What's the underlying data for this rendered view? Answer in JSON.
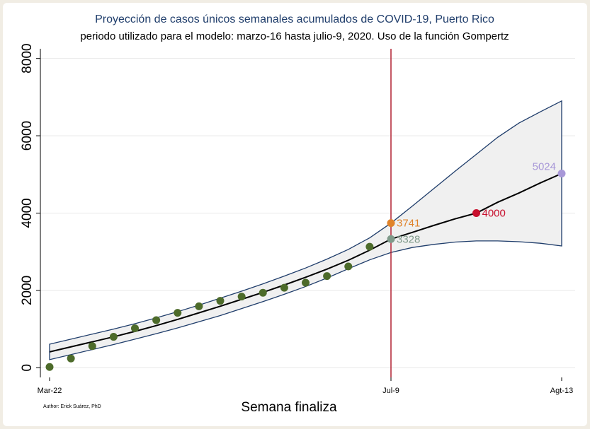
{
  "chart_data": {
    "type": "line",
    "title": "Proyección de casos únicos semanales acumulados de COVID-19, Puerto Rico",
    "subtitle": "periodo utilizado para el modelo: marzo-16 hasta julio-9, 2020. Uso de la función Gompertz",
    "xlabel": "Semana finaliza",
    "ylabel": "",
    "author": "Author: Erick Suárez, PhD",
    "x_tick_labels": [
      "Mar-22",
      "Jul-9",
      "Agt-13"
    ],
    "x_tick_weeks": [
      1,
      17,
      25
    ],
    "y_ticks": [
      0,
      2000,
      4000,
      6000,
      8000
    ],
    "y_tick_labels": [
      "0",
      "2000",
      "4000",
      "6000",
      "8000"
    ],
    "ylim": [
      -250,
      8250
    ],
    "grid": "horizontal",
    "cutoff_week": 17,
    "observed": {
      "weeks": [
        1,
        2,
        3,
        4,
        5,
        6,
        7,
        8,
        9,
        10,
        11,
        12,
        13,
        14,
        15,
        16
      ],
      "values": [
        20,
        240,
        560,
        800,
        1020,
        1230,
        1420,
        1590,
        1730,
        1840,
        1940,
        2070,
        2200,
        2370,
        2620,
        3130
      ]
    },
    "fit": {
      "weeks": [
        1,
        2,
        3,
        4,
        5,
        6,
        7,
        8,
        9,
        10,
        11,
        12,
        13,
        14,
        15,
        16,
        17,
        18,
        19,
        20,
        21,
        22,
        23,
        24,
        25
      ],
      "values": [
        410,
        540,
        670,
        800,
        940,
        1090,
        1250,
        1420,
        1590,
        1770,
        1950,
        2140,
        2340,
        2550,
        2780,
        3040,
        3328,
        3500,
        3680,
        3850,
        4000,
        4280,
        4520,
        4780,
        5024
      ]
    },
    "ci_upper": {
      "weeks": [
        1,
        2,
        3,
        4,
        5,
        6,
        7,
        8,
        9,
        10,
        11,
        12,
        13,
        14,
        15,
        16,
        17,
        18,
        19,
        20,
        21,
        22,
        23,
        24,
        25
      ],
      "values": [
        610,
        740,
        870,
        1000,
        1140,
        1290,
        1450,
        1620,
        1800,
        1980,
        2170,
        2370,
        2580,
        2810,
        3060,
        3360,
        3741,
        4180,
        4630,
        5080,
        5520,
        5960,
        6330,
        6620,
        6900
      ]
    },
    "ci_lower": {
      "weeks": [
        1,
        2,
        3,
        4,
        5,
        6,
        7,
        8,
        9,
        10,
        11,
        12,
        13,
        14,
        15,
        16,
        17,
        18,
        19,
        20,
        21,
        22,
        23,
        24,
        25
      ],
      "values": [
        210,
        340,
        470,
        600,
        740,
        880,
        1030,
        1190,
        1350,
        1530,
        1710,
        1900,
        2100,
        2320,
        2560,
        2790,
        2980,
        3110,
        3190,
        3250,
        3280,
        3280,
        3260,
        3220,
        3150
      ]
    },
    "highlights": [
      {
        "week": 17,
        "value": 3741,
        "label": "3741",
        "color": "#e0832a"
      },
      {
        "week": 17,
        "value": 3328,
        "label": "3328",
        "color": "#7f9a8a"
      },
      {
        "week": 21,
        "value": 4000,
        "label": "4000",
        "color": "#c8102e"
      },
      {
        "week": 25,
        "value": 5024,
        "label": "5024",
        "color": "#a898d8"
      }
    ],
    "colors": {
      "observed": "#4d6b2a",
      "fit": "#000000",
      "ci_band_fill": "#f0f0f0",
      "ci_band_line": "#1f3d6b",
      "cutoff_line": "#b22234",
      "grid": "#e8e8e8"
    }
  }
}
